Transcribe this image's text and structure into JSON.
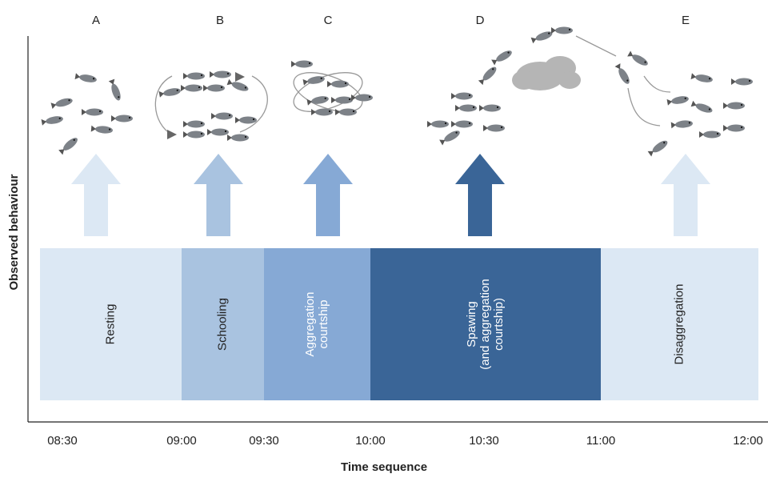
{
  "letters": [
    "A",
    "B",
    "C",
    "D",
    "E"
  ],
  "phases": [
    {
      "lines": [
        "Resting"
      ]
    },
    {
      "lines": [
        "Schooling"
      ]
    },
    {
      "lines": [
        "Aggregation",
        "courtship"
      ]
    },
    {
      "lines": [
        "Spawing",
        "(and aggregation",
        "courtship)"
      ]
    },
    {
      "lines": [
        "Disaggregation"
      ]
    }
  ],
  "time_ticks": [
    "08:30",
    "09:00",
    "09:30",
    "10:00",
    "10:30",
    "11:00",
    "12:00"
  ],
  "y_axis_label": "Observed behaviour",
  "x_axis_label": "Time sequence"
}
